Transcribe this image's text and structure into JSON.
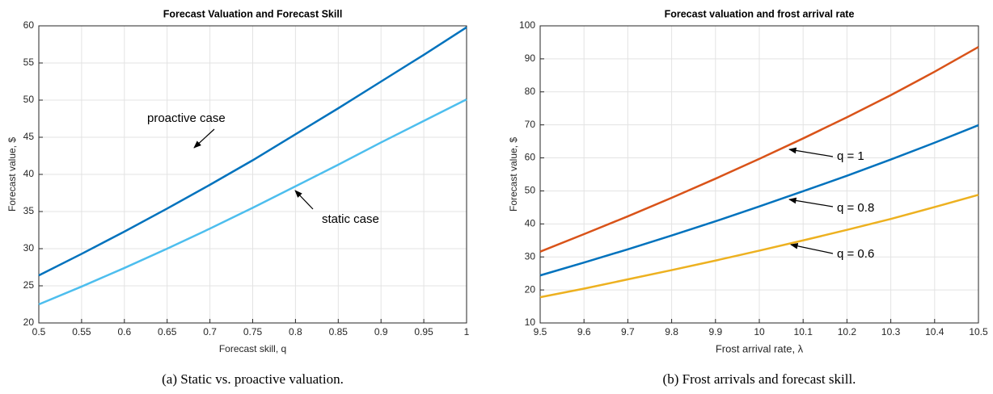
{
  "chart_data": [
    {
      "type": "line",
      "title": "Forecast Valuation and Forecast Skill",
      "caption": "(a) Static vs. proactive valuation.",
      "xlabel": "Forecast skill, q",
      "ylabel": "Forecast value, $",
      "x": [
        0.5,
        0.55,
        0.6,
        0.65,
        0.7,
        0.75,
        0.8,
        0.85,
        0.9,
        0.95,
        1
      ],
      "series": [
        {
          "name": "proactive case",
          "color": "#0072bd",
          "values": [
            26.4,
            29.3,
            32.3,
            35.4,
            38.6,
            41.9,
            45.4,
            48.9,
            52.5,
            56.1,
            59.8
          ]
        },
        {
          "name": "static case",
          "color": "#4dbeee",
          "values": [
            22.5,
            24.9,
            27.4,
            30.0,
            32.7,
            35.5,
            38.4,
            41.3,
            44.3,
            47.2,
            50.1
          ]
        }
      ],
      "xlim": [
        0.5,
        1
      ],
      "xticks": [
        0.5,
        0.55,
        0.6,
        0.65,
        0.7,
        0.75,
        0.8,
        0.85,
        0.9,
        0.95,
        1
      ],
      "ylim": [
        20,
        60
      ],
      "yticks": [
        20,
        25,
        30,
        35,
        40,
        45,
        50,
        55,
        60
      ],
      "grid": true
    },
    {
      "type": "line",
      "title": "Forecast valuation and frost arrival rate",
      "caption": "(b) Frost arrivals and forecast skill.",
      "xlabel": "Frost arrival rate, λ",
      "ylabel": "Forecast value, $",
      "x": [
        9.5,
        9.6,
        9.7,
        9.8,
        9.9,
        10,
        10.1,
        10.2,
        10.3,
        10.4,
        10.5
      ],
      "series": [
        {
          "name": "q = 1",
          "color": "#d95319",
          "values": [
            31.6,
            36.9,
            42.3,
            47.9,
            53.7,
            59.7,
            65.9,
            72.3,
            79.0,
            86.1,
            93.6
          ]
        },
        {
          "name": "q = 0.8",
          "color": "#0072bd",
          "values": [
            24.4,
            28.3,
            32.3,
            36.5,
            40.8,
            45.3,
            49.9,
            54.6,
            59.5,
            64.6,
            69.9
          ]
        },
        {
          "name": "q = 0.6",
          "color": "#edb120",
          "values": [
            17.8,
            20.4,
            23.2,
            26.0,
            28.9,
            31.9,
            35.0,
            38.2,
            41.5,
            45.1,
            48.8
          ]
        }
      ],
      "xlim": [
        9.5,
        10.5
      ],
      "xticks": [
        9.5,
        9.6,
        9.7,
        9.8,
        9.9,
        10,
        10.1,
        10.2,
        10.3,
        10.4,
        10.5
      ],
      "ylim": [
        10,
        100
      ],
      "yticks": [
        10,
        20,
        30,
        40,
        50,
        60,
        70,
        80,
        90,
        100
      ],
      "grid": true
    }
  ]
}
